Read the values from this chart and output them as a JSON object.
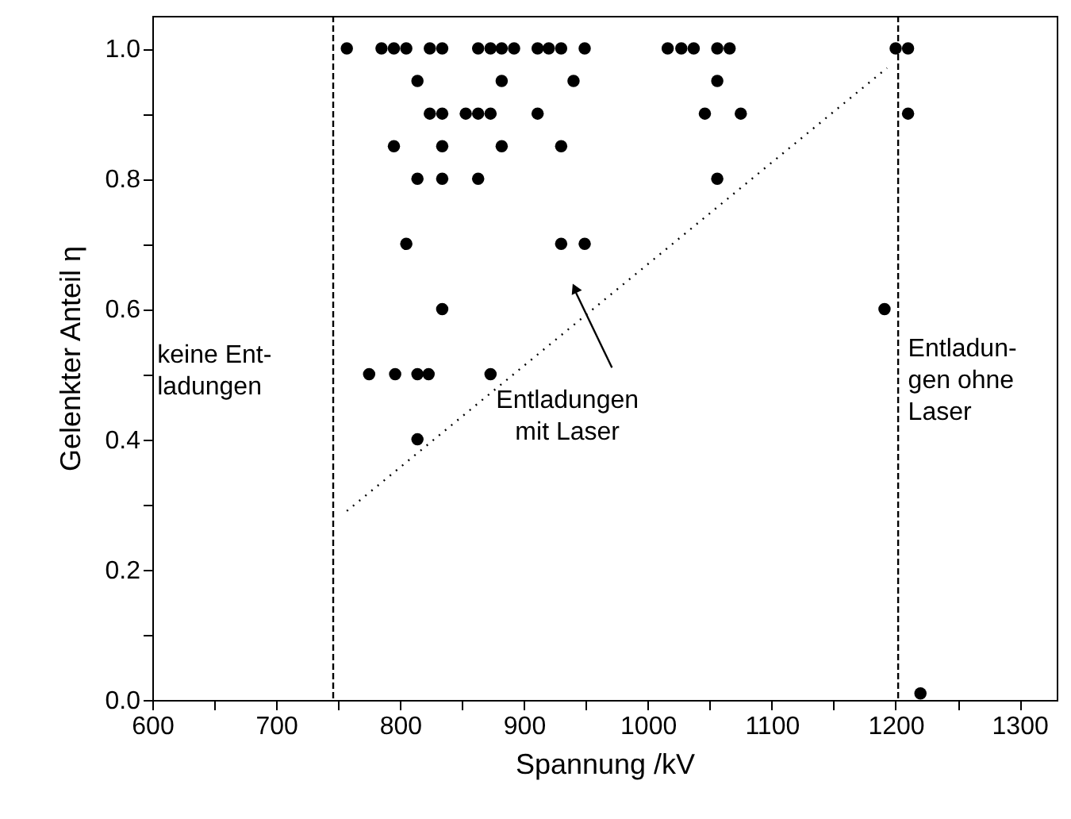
{
  "chart_data": {
    "type": "scatter",
    "xlabel": "Spannung /kV",
    "ylabel": "Gelenkter Anteil  η",
    "xlim": [
      600,
      1330
    ],
    "ylim": [
      0,
      1.05
    ],
    "xticks": [
      600,
      {
        "value": 650,
        "label": null
      },
      700,
      {
        "value": 750,
        "label": null
      },
      800,
      {
        "value": 850,
        "label": null
      },
      900,
      {
        "value": 950,
        "label": null
      },
      1000,
      {
        "value": 1050,
        "label": null
      },
      1100,
      {
        "value": 1150,
        "label": null
      },
      1200,
      {
        "value": 1250,
        "label": null
      },
      1300
    ],
    "yticks": [
      {
        "value": 0,
        "label": "0.0"
      },
      {
        "value": 0.1,
        "label": null
      },
      {
        "value": 0.2,
        "label": "0.2"
      },
      {
        "value": 0.3,
        "label": null
      },
      {
        "value": 0.4,
        "label": "0.4"
      },
      {
        "value": 0.5,
        "label": null
      },
      {
        "value": 0.6,
        "label": "0.6"
      },
      {
        "value": 0.7,
        "label": null
      },
      {
        "value": 0.8,
        "label": "0.8"
      },
      {
        "value": 0.9,
        "label": null
      },
      {
        "value": 1,
        "label": "1.0"
      }
    ],
    "grid": false,
    "series": [
      {
        "color": "#000000",
        "marker": "circle",
        "x": [
          757,
          785,
          795,
          805,
          824,
          834,
          863,
          873,
          882,
          892,
          911,
          920,
          930,
          949,
          1016,
          1027,
          1037,
          1056,
          1066,
          1200,
          1210,
          814,
          882,
          940,
          1056,
          824,
          834,
          853,
          863,
          873,
          911,
          1046,
          1075,
          1210,
          795,
          834,
          882,
          930,
          814,
          834,
          863,
          1056,
          805,
          930,
          949,
          834,
          1191,
          775,
          796,
          814,
          823,
          873,
          814,
          1220
        ],
        "values": [
          1,
          1,
          1,
          1,
          1,
          1,
          1,
          1,
          1,
          1,
          1,
          1,
          1,
          1,
          1,
          1,
          1,
          1,
          1,
          1,
          1,
          0.95,
          0.95,
          0.95,
          0.95,
          0.9,
          0.9,
          0.9,
          0.9,
          0.9,
          0.9,
          0.9,
          0.9,
          0.9,
          0.85,
          0.85,
          0.85,
          0.85,
          0.8,
          0.8,
          0.8,
          0.8,
          0.7,
          0.7,
          0.7,
          0.6,
          0.6,
          0.5,
          0.5,
          0.5,
          0.5,
          0.5,
          0.4,
          0.01
        ]
      },
      {
        "type": "line",
        "color": "#000000",
        "line_style": "dotted",
        "marker": "none",
        "x": [
          757,
          1193
        ],
        "values": [
          0.29,
          0.97
        ]
      }
    ],
    "ref_lines": [
      {
        "axis": "x",
        "value": 746,
        "color": "#000000",
        "line_style": "dashed"
      },
      {
        "axis": "x",
        "value": 1202,
        "color": "#000000",
        "line_style": "dashed"
      }
    ],
    "annotations": [
      "keine Ent-\nladungen",
      "Entladungen\nmit Laser",
      "Entladun-\ngen ohne\nLaser"
    ]
  }
}
